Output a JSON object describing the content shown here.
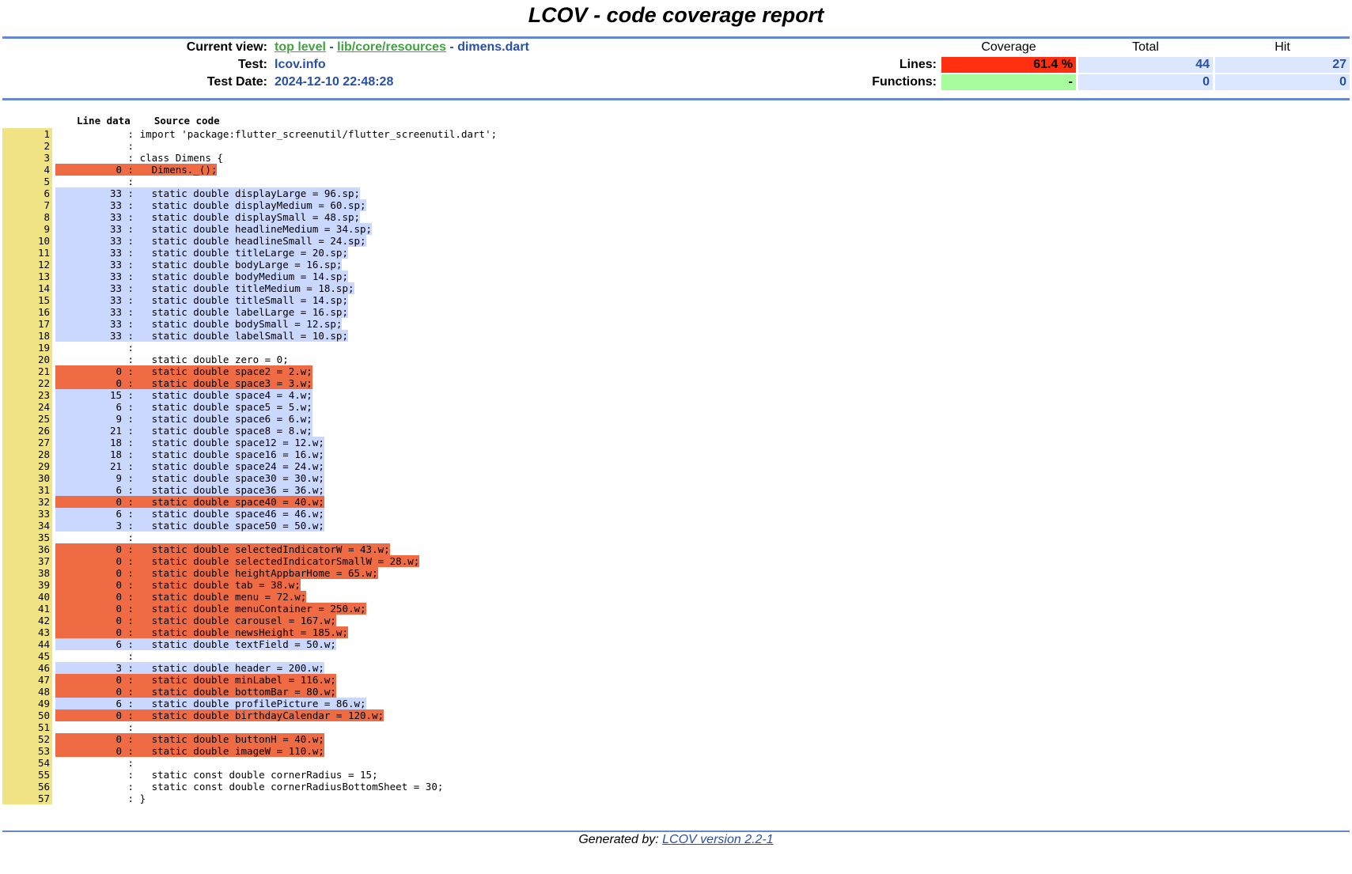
{
  "title": "LCOV - code coverage report",
  "header": {
    "current_view_label": "Current view:",
    "breadcrumb": {
      "top_level": "top level",
      "sep1": " - ",
      "dir": "lib/core/resources",
      "sep2": " - ",
      "file": "dimens.dart"
    },
    "test_label": "Test:",
    "test_value": "lcov.info",
    "date_label": "Test Date:",
    "date_value": "2024-12-10 22:48:28"
  },
  "summary": {
    "col_coverage": "Coverage",
    "col_total": "Total",
    "col_hit": "Hit",
    "lines_label": "Lines:",
    "lines_coverage": "61.4 %",
    "lines_total": "44",
    "lines_hit": "27",
    "functions_label": "Functions:",
    "functions_coverage": "-",
    "functions_total": "0",
    "functions_hit": "0"
  },
  "source_header": {
    "line_data": "Line data",
    "source_code": "Source code"
  },
  "lines": [
    {
      "n": "1",
      "count": "",
      "status": "none",
      "code": "import 'package:flutter_screenutil/flutter_screenutil.dart';"
    },
    {
      "n": "2",
      "count": "",
      "status": "none",
      "code": ""
    },
    {
      "n": "3",
      "count": "",
      "status": "none",
      "code": "class Dimens {"
    },
    {
      "n": "4",
      "count": "0",
      "status": "miss",
      "code": "  Dimens._();"
    },
    {
      "n": "5",
      "count": "",
      "status": "none",
      "code": ""
    },
    {
      "n": "6",
      "count": "33",
      "status": "hit",
      "code": "  static double displayLarge = 96.sp;"
    },
    {
      "n": "7",
      "count": "33",
      "status": "hit",
      "code": "  static double displayMedium = 60.sp;"
    },
    {
      "n": "8",
      "count": "33",
      "status": "hit",
      "code": "  static double displaySmall = 48.sp;"
    },
    {
      "n": "9",
      "count": "33",
      "status": "hit",
      "code": "  static double headlineMedium = 34.sp;"
    },
    {
      "n": "10",
      "count": "33",
      "status": "hit",
      "code": "  static double headlineSmall = 24.sp;"
    },
    {
      "n": "11",
      "count": "33",
      "status": "hit",
      "code": "  static double titleLarge = 20.sp;"
    },
    {
      "n": "12",
      "count": "33",
      "status": "hit",
      "code": "  static double bodyLarge = 16.sp;"
    },
    {
      "n": "13",
      "count": "33",
      "status": "hit",
      "code": "  static double bodyMedium = 14.sp;"
    },
    {
      "n": "14",
      "count": "33",
      "status": "hit",
      "code": "  static double titleMedium = 18.sp;"
    },
    {
      "n": "15",
      "count": "33",
      "status": "hit",
      "code": "  static double titleSmall = 14.sp;"
    },
    {
      "n": "16",
      "count": "33",
      "status": "hit",
      "code": "  static double labelLarge = 16.sp;"
    },
    {
      "n": "17",
      "count": "33",
      "status": "hit",
      "code": "  static double bodySmall = 12.sp;"
    },
    {
      "n": "18",
      "count": "33",
      "status": "hit",
      "code": "  static double labelSmall = 10.sp;"
    },
    {
      "n": "19",
      "count": "",
      "status": "none",
      "code": ""
    },
    {
      "n": "20",
      "count": "",
      "status": "none",
      "code": "  static double zero = 0;"
    },
    {
      "n": "21",
      "count": "0",
      "status": "miss",
      "code": "  static double space2 = 2.w;"
    },
    {
      "n": "22",
      "count": "0",
      "status": "miss",
      "code": "  static double space3 = 3.w;"
    },
    {
      "n": "23",
      "count": "15",
      "status": "hit",
      "code": "  static double space4 = 4.w;"
    },
    {
      "n": "24",
      "count": "6",
      "status": "hit",
      "code": "  static double space5 = 5.w;"
    },
    {
      "n": "25",
      "count": "9",
      "status": "hit",
      "code": "  static double space6 = 6.w;"
    },
    {
      "n": "26",
      "count": "21",
      "status": "hit",
      "code": "  static double space8 = 8.w;"
    },
    {
      "n": "27",
      "count": "18",
      "status": "hit",
      "code": "  static double space12 = 12.w;"
    },
    {
      "n": "28",
      "count": "18",
      "status": "hit",
      "code": "  static double space16 = 16.w;"
    },
    {
      "n": "29",
      "count": "21",
      "status": "hit",
      "code": "  static double space24 = 24.w;"
    },
    {
      "n": "30",
      "count": "9",
      "status": "hit",
      "code": "  static double space30 = 30.w;"
    },
    {
      "n": "31",
      "count": "6",
      "status": "hit",
      "code": "  static double space36 = 36.w;"
    },
    {
      "n": "32",
      "count": "0",
      "status": "miss",
      "code": "  static double space40 = 40.w;"
    },
    {
      "n": "33",
      "count": "6",
      "status": "hit",
      "code": "  static double space46 = 46.w;"
    },
    {
      "n": "34",
      "count": "3",
      "status": "hit",
      "code": "  static double space50 = 50.w;"
    },
    {
      "n": "35",
      "count": "",
      "status": "none",
      "code": ""
    },
    {
      "n": "36",
      "count": "0",
      "status": "miss",
      "code": "  static double selectedIndicatorW = 43.w;"
    },
    {
      "n": "37",
      "count": "0",
      "status": "miss",
      "code": "  static double selectedIndicatorSmallW = 28.w;"
    },
    {
      "n": "38",
      "count": "0",
      "status": "miss",
      "code": "  static double heightAppbarHome = 65.w;"
    },
    {
      "n": "39",
      "count": "0",
      "status": "miss",
      "code": "  static double tab = 38.w;"
    },
    {
      "n": "40",
      "count": "0",
      "status": "miss",
      "code": "  static double menu = 72.w;"
    },
    {
      "n": "41",
      "count": "0",
      "status": "miss",
      "code": "  static double menuContainer = 250.w;"
    },
    {
      "n": "42",
      "count": "0",
      "status": "miss",
      "code": "  static double carousel = 167.w;"
    },
    {
      "n": "43",
      "count": "0",
      "status": "miss",
      "code": "  static double newsHeight = 185.w;"
    },
    {
      "n": "44",
      "count": "6",
      "status": "hit",
      "code": "  static double textField = 50.w;"
    },
    {
      "n": "45",
      "count": "",
      "status": "none",
      "code": ""
    },
    {
      "n": "46",
      "count": "3",
      "status": "hit",
      "code": "  static double header = 200.w;"
    },
    {
      "n": "47",
      "count": "0",
      "status": "miss",
      "code": "  static double minLabel = 116.w;"
    },
    {
      "n": "48",
      "count": "0",
      "status": "miss",
      "code": "  static double bottomBar = 80.w;"
    },
    {
      "n": "49",
      "count": "6",
      "status": "hit",
      "code": "  static double profilePicture = 86.w;"
    },
    {
      "n": "50",
      "count": "0",
      "status": "miss",
      "code": "  static double birthdayCalendar = 120.w;"
    },
    {
      "n": "51",
      "count": "",
      "status": "none",
      "code": ""
    },
    {
      "n": "52",
      "count": "0",
      "status": "miss",
      "code": "  static double buttonH = 40.w;"
    },
    {
      "n": "53",
      "count": "0",
      "status": "miss",
      "code": "  static double imageW = 110.w;"
    },
    {
      "n": "54",
      "count": "",
      "status": "none",
      "code": ""
    },
    {
      "n": "55",
      "count": "",
      "status": "none",
      "code": "  static const double cornerRadius = 15;"
    },
    {
      "n": "56",
      "count": "",
      "status": "none",
      "code": "  static const double cornerRadiusBottomSheet = 30;"
    },
    {
      "n": "57",
      "count": "",
      "status": "none",
      "code": "}"
    }
  ],
  "footer": {
    "prefix": "Generated by: ",
    "link_text": "LCOV version 2.2-1"
  },
  "colors": {
    "rule": "#6688d4",
    "hit": "#cad7fe",
    "miss": "#ef6b43",
    "line_number_bg": "#efe383",
    "coverage_low": "#ff3010",
    "coverage_na": "#a7fc9d"
  }
}
